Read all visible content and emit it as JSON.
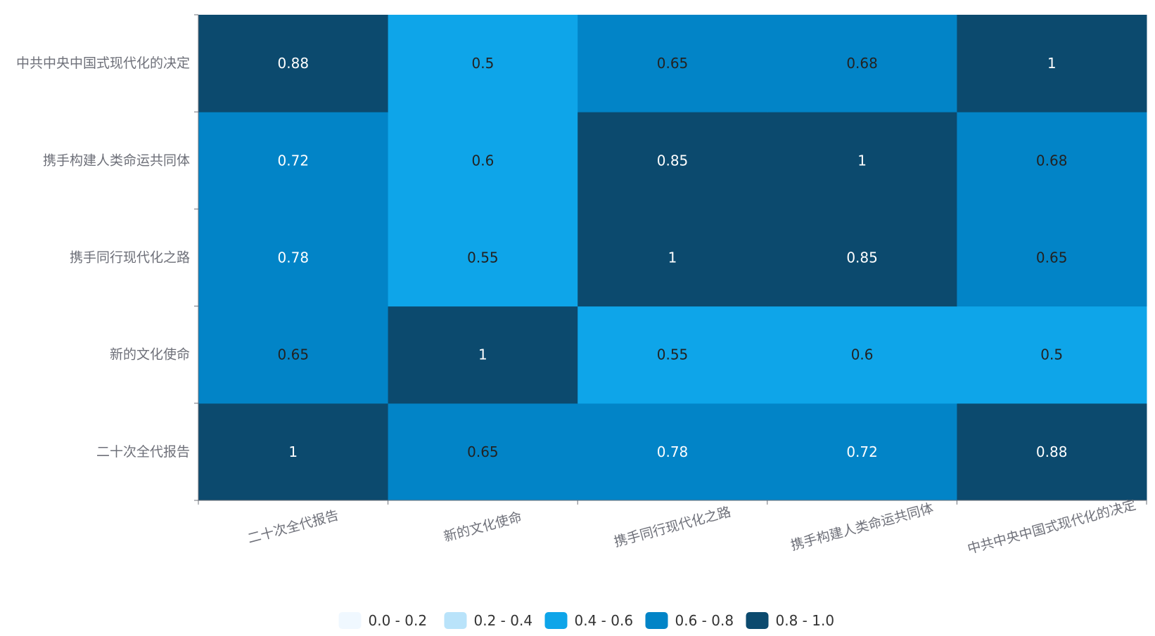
{
  "chart_data": {
    "type": "heatmap",
    "x_categories": [
      "二十次全代报告",
      "新的文化使命",
      "携手同行现代化之路",
      "携手构建人类命运共同体",
      "中共中央中国式现代化的决定"
    ],
    "y_categories": [
      "二十次全代报告",
      "新的文化使命",
      "携手同行现代化之路",
      "携手构建人类命运共同体",
      "中共中央中国式现代化的决定"
    ],
    "values": [
      [
        1,
        0.65,
        0.78,
        0.72,
        0.88
      ],
      [
        0.65,
        1,
        0.55,
        0.6,
        0.5
      ],
      [
        0.78,
        0.55,
        1,
        0.85,
        0.65
      ],
      [
        0.72,
        0.6,
        0.85,
        1,
        0.68
      ],
      [
        0.88,
        0.5,
        0.65,
        0.68,
        1
      ]
    ],
    "value_range": [
      0,
      1
    ],
    "legend_position": "bottom-center",
    "legend": [
      {
        "label": "0.0 - 0.2",
        "min": 0.0,
        "max": 0.2,
        "color": "#f0f8ff"
      },
      {
        "label": "0.2 - 0.4",
        "min": 0.2,
        "max": 0.4,
        "color": "#b9e3fa"
      },
      {
        "label": "0.4 - 0.6",
        "min": 0.4,
        "max": 0.6,
        "color": "#0ea5e9"
      },
      {
        "label": "0.6 - 0.8",
        "min": 0.6,
        "max": 0.8,
        "color": "#0284c7"
      },
      {
        "label": "0.8 - 1.0",
        "min": 0.8,
        "max": 1.0,
        "color": "#0c4a6e"
      }
    ],
    "label_colors": {
      "dark": "#ffffff",
      "light": "#222222"
    },
    "axis_line_color": "#6e7079"
  }
}
